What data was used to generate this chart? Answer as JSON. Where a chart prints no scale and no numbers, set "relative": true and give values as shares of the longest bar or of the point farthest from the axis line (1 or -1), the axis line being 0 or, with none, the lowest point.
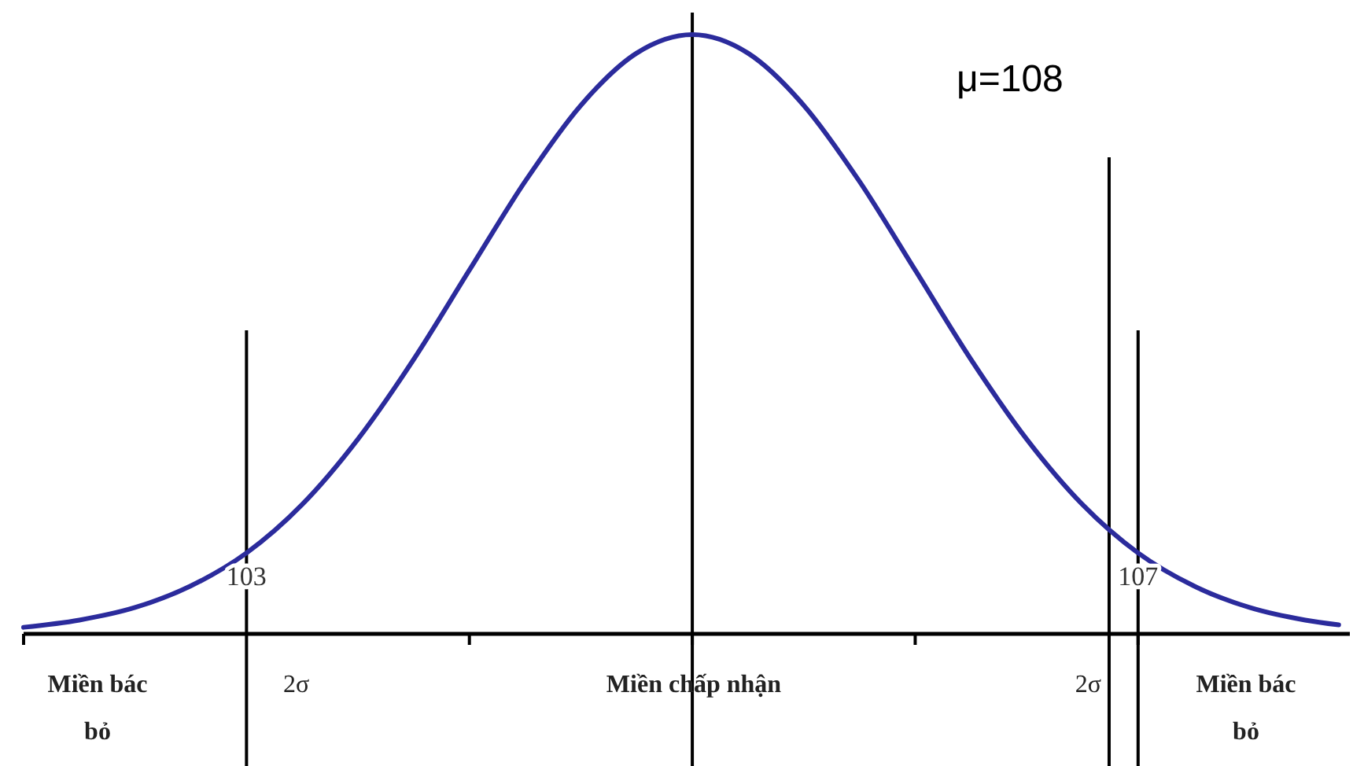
{
  "chart_data": {
    "type": "line",
    "relative": true,
    "x": [
      102,
      102.25,
      102.5,
      102.75,
      103,
      103.25,
      103.5,
      103.75,
      104,
      104.25,
      104.5,
      104.75,
      105,
      105.25,
      105.5,
      105.75,
      106,
      106.25,
      106.5,
      106.75,
      107,
      107.25,
      107.5,
      107.75,
      107.9
    ],
    "series": [
      {
        "color": "#2b2b9c",
        "values": [
          0.011,
          0.023,
          0.044,
          0.08,
          0.135,
          0.216,
          0.325,
          0.458,
          0.607,
          0.755,
          0.882,
          0.969,
          1,
          0.969,
          0.882,
          0.755,
          0.607,
          0.458,
          0.325,
          0.216,
          0.135,
          0.08,
          0.044,
          0.023,
          0.015
        ]
      }
    ],
    "xlim": [
      102,
      107.95
    ],
    "xticks": [
      103,
      107
    ],
    "grid": false,
    "marker": "none",
    "line_style": "solid",
    "ref_lines": [
      {
        "axis": "x",
        "value": 105
      },
      {
        "axis": "x",
        "value": 103
      },
      {
        "axis": "x",
        "value": 106.87
      },
      {
        "axis": "x",
        "value": 107
      }
    ],
    "annotations": [
      "μ=108",
      "Miền bác bỏ",
      "2σ",
      "Miền chấp nhận",
      "2σ",
      "Miền bác bỏ"
    ]
  }
}
